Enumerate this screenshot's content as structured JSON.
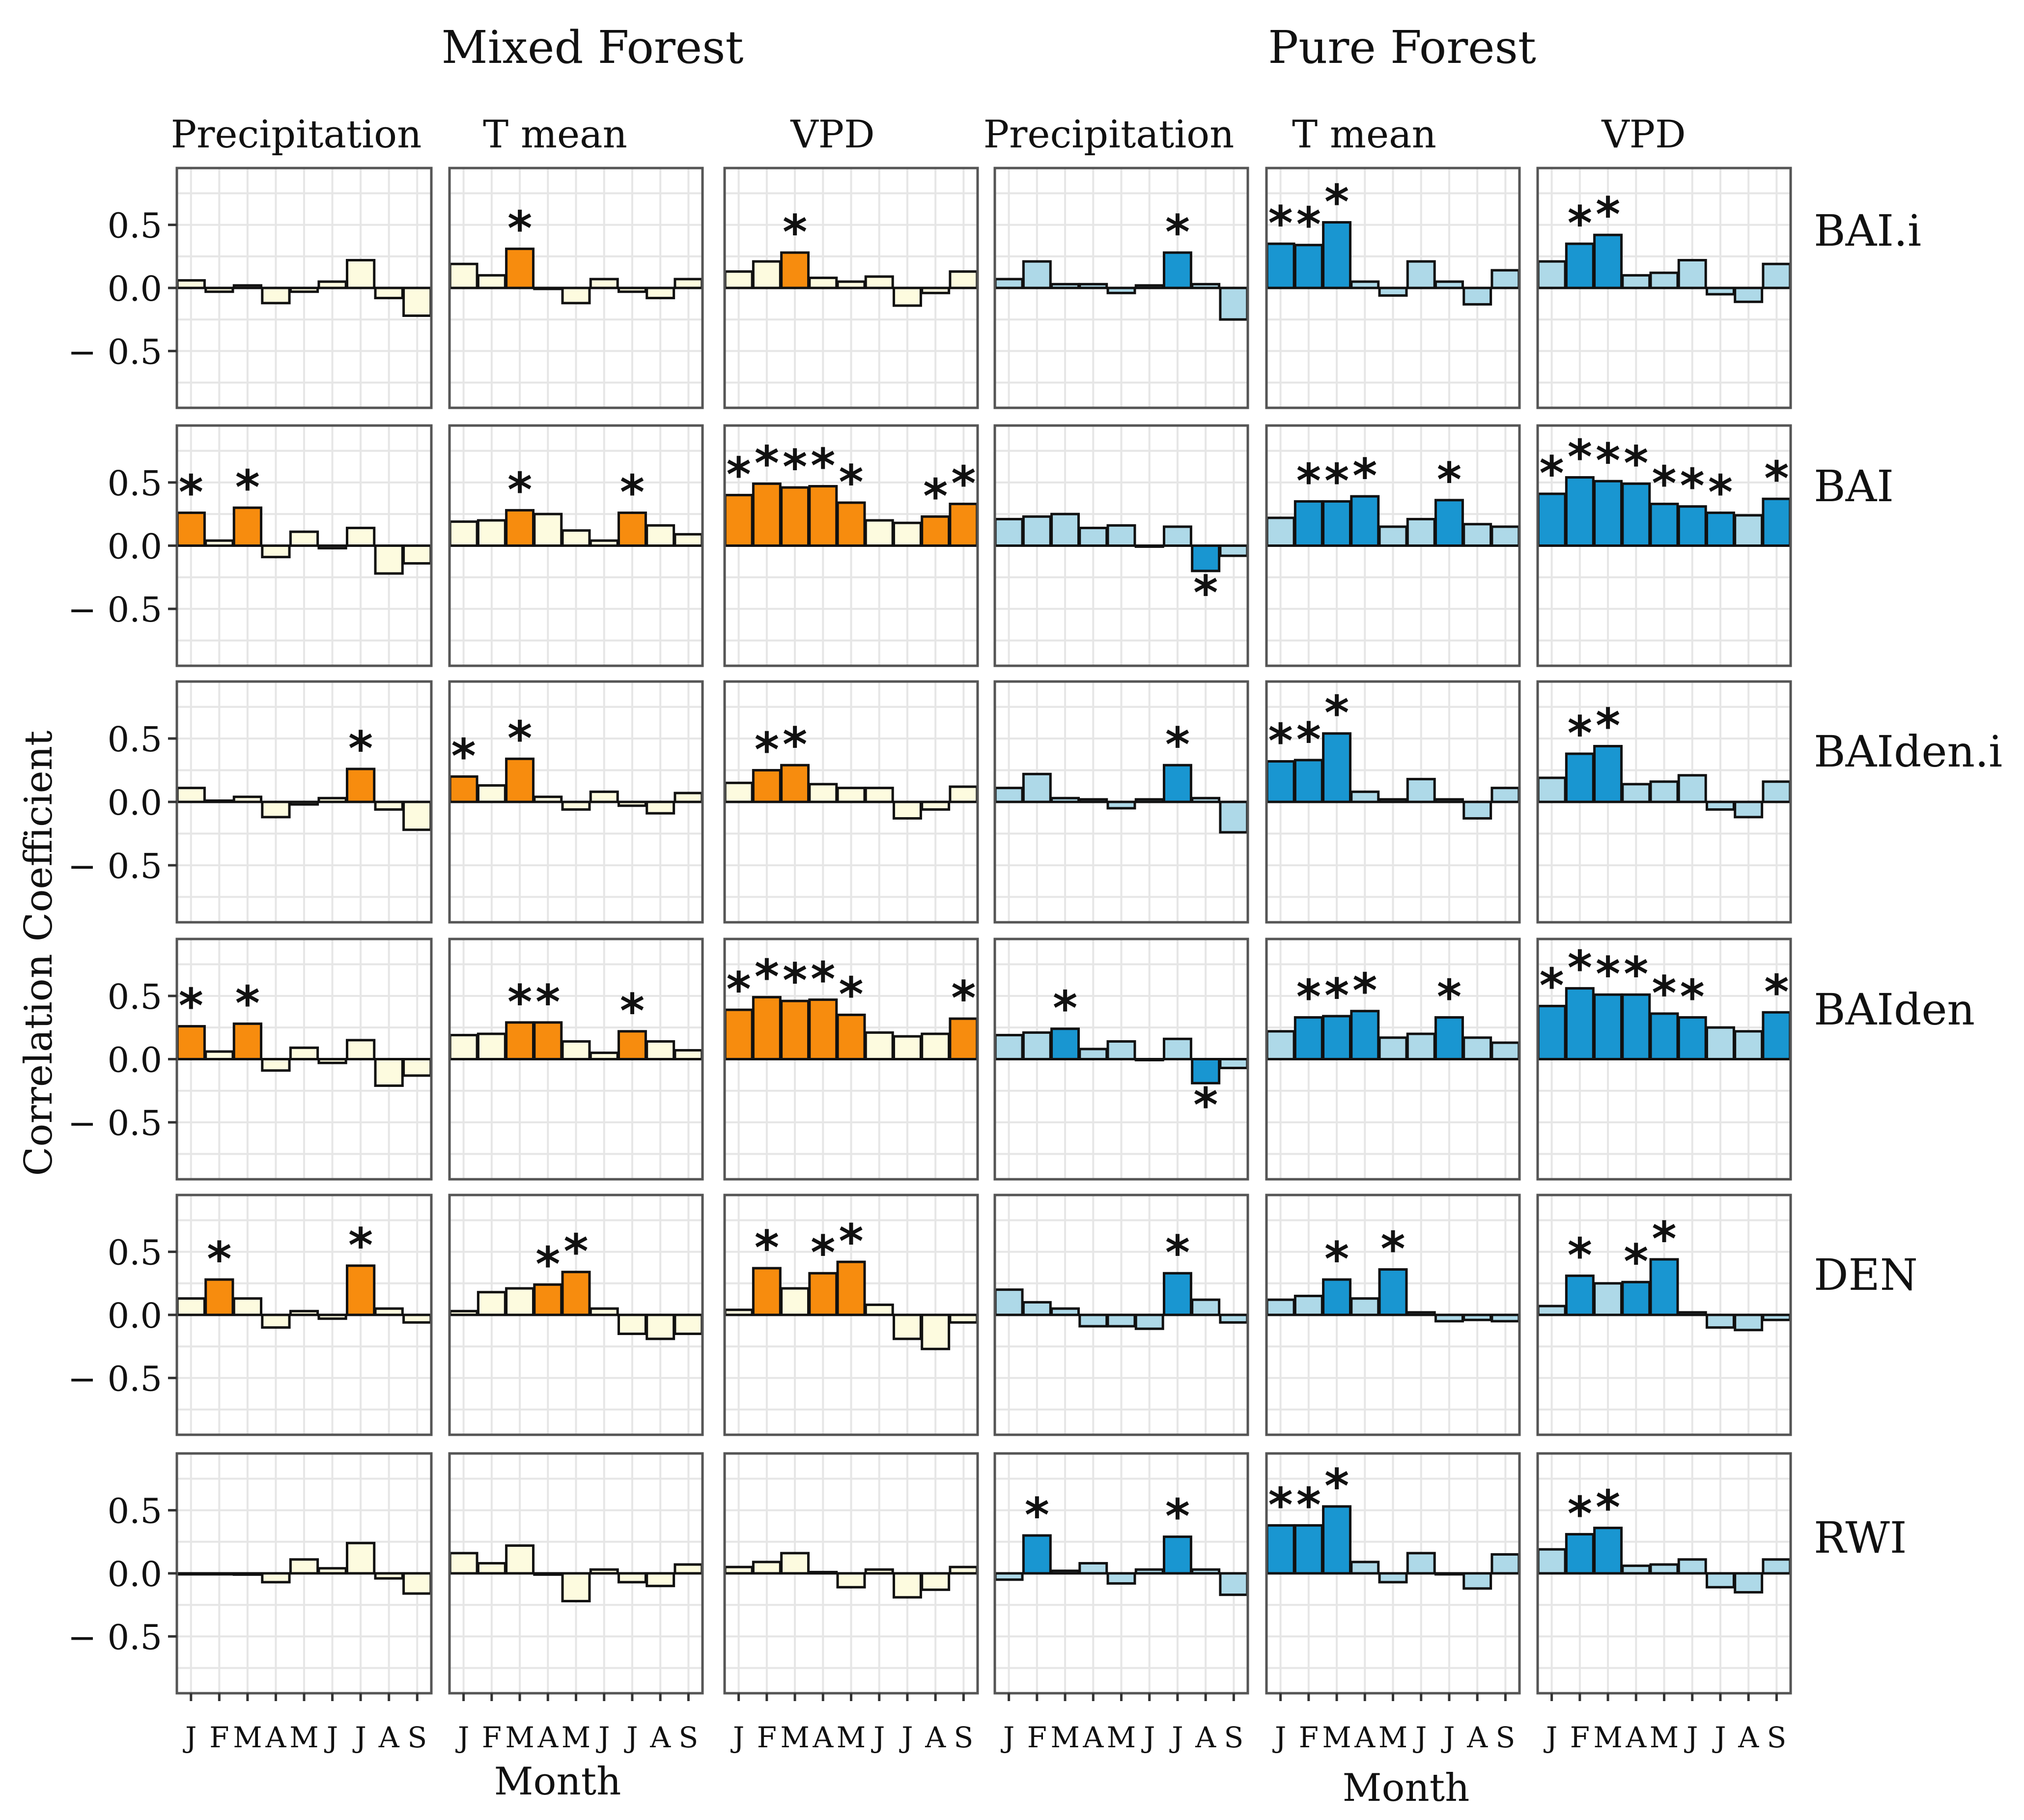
{
  "colors": {
    "mixed_title": "#d27a2c",
    "pure_title": "#1e8fd0",
    "mixed_sig": "#f78c0e",
    "mixed_nonsig": "#fdfbdf",
    "pure_sig": "#1996d1",
    "pure_nonsig": "#aed9e8"
  },
  "chart_data": {
    "type": "bar",
    "title": "",
    "group_titles": [
      "Mixed Forest",
      "Pure Forest"
    ],
    "column_labels": [
      "Precipitation",
      "T mean",
      "VPD",
      "Precipitation",
      "T mean",
      "VPD"
    ],
    "row_labels": [
      "BAI.i",
      "BAI",
      "BAIden.i",
      "BAIden",
      "DEN",
      "RWI"
    ],
    "months": [
      "J",
      "F",
      "M",
      "A",
      "M",
      "J",
      "J",
      "A",
      "S"
    ],
    "xlabel": "Month",
    "ylabel": "Correlation Coefficient",
    "ylim": [
      -0.95,
      0.95
    ],
    "yticks": [
      0.5,
      0.0,
      -0.5
    ],
    "ytick_labels": [
      "0.5",
      "0.0",
      "− 0.5"
    ],
    "significance_marker": "*",
    "panels": [
      [
        {
          "values": [
            0.06,
            -0.03,
            0.02,
            -0.12,
            -0.03,
            0.05,
            0.22,
            -0.08,
            -0.22
          ],
          "sig": [
            0,
            0,
            0,
            0,
            0,
            0,
            0,
            0,
            0
          ]
        },
        {
          "values": [
            0.19,
            0.1,
            0.31,
            0.0,
            -0.12,
            0.07,
            -0.03,
            -0.08,
            0.07
          ],
          "sig": [
            0,
            0,
            1,
            0,
            0,
            0,
            0,
            0,
            0
          ]
        },
        {
          "values": [
            0.13,
            0.21,
            0.28,
            0.08,
            0.05,
            0.09,
            -0.14,
            -0.04,
            0.13
          ],
          "sig": [
            0,
            0,
            1,
            0,
            0,
            0,
            0,
            0,
            0
          ]
        },
        {
          "values": [
            0.07,
            0.21,
            0.03,
            0.03,
            -0.04,
            0.02,
            0.28,
            0.03,
            -0.25
          ],
          "sig": [
            0,
            0,
            0,
            0,
            0,
            0,
            1,
            0,
            0
          ]
        },
        {
          "values": [
            0.35,
            0.34,
            0.52,
            0.05,
            -0.06,
            0.21,
            0.05,
            -0.13,
            0.14
          ],
          "sig": [
            1,
            1,
            1,
            0,
            0,
            0,
            0,
            0,
            0
          ]
        },
        {
          "values": [
            0.21,
            0.35,
            0.42,
            0.1,
            0.12,
            0.22,
            -0.05,
            -0.11,
            0.19
          ],
          "sig": [
            0,
            1,
            1,
            0,
            0,
            0,
            0,
            0,
            0
          ]
        }
      ],
      [
        {
          "values": [
            0.26,
            0.04,
            0.3,
            -0.09,
            0.11,
            -0.02,
            0.14,
            -0.22,
            -0.14
          ],
          "sig": [
            1,
            0,
            1,
            0,
            0,
            0,
            0,
            0,
            0
          ]
        },
        {
          "values": [
            0.19,
            0.2,
            0.28,
            0.25,
            0.12,
            0.04,
            0.26,
            0.16,
            0.09
          ],
          "sig": [
            0,
            0,
            1,
            0,
            0,
            0,
            1,
            0,
            0
          ]
        },
        {
          "values": [
            0.4,
            0.49,
            0.46,
            0.47,
            0.34,
            0.2,
            0.18,
            0.23,
            0.33
          ],
          "sig": [
            1,
            1,
            1,
            1,
            1,
            0,
            0,
            1,
            1
          ]
        },
        {
          "values": [
            0.21,
            0.23,
            0.25,
            0.14,
            0.16,
            0.0,
            0.15,
            -0.2,
            -0.08
          ],
          "sig": [
            0,
            0,
            0,
            0,
            0,
            0,
            0,
            1,
            0
          ]
        },
        {
          "values": [
            0.22,
            0.35,
            0.35,
            0.39,
            0.15,
            0.21,
            0.36,
            0.17,
            0.15
          ],
          "sig": [
            0,
            1,
            1,
            1,
            0,
            0,
            1,
            0,
            0
          ]
        },
        {
          "values": [
            0.41,
            0.54,
            0.51,
            0.49,
            0.33,
            0.31,
            0.26,
            0.24,
            0.37
          ],
          "sig": [
            1,
            1,
            1,
            1,
            1,
            1,
            1,
            0,
            1
          ]
        }
      ],
      [
        {
          "values": [
            0.11,
            0.01,
            0.04,
            -0.12,
            -0.02,
            0.03,
            0.26,
            -0.06,
            -0.22
          ],
          "sig": [
            0,
            0,
            0,
            0,
            0,
            0,
            1,
            0,
            0
          ]
        },
        {
          "values": [
            0.2,
            0.13,
            0.34,
            0.04,
            -0.06,
            0.08,
            -0.03,
            -0.09,
            0.07
          ],
          "sig": [
            1,
            0,
            1,
            0,
            0,
            0,
            0,
            0,
            0
          ]
        },
        {
          "values": [
            0.15,
            0.25,
            0.29,
            0.14,
            0.11,
            0.11,
            -0.13,
            -0.06,
            0.12
          ],
          "sig": [
            0,
            1,
            1,
            0,
            0,
            0,
            0,
            0,
            0
          ]
        },
        {
          "values": [
            0.11,
            0.22,
            0.03,
            0.02,
            -0.05,
            0.02,
            0.29,
            0.03,
            -0.24
          ],
          "sig": [
            0,
            0,
            0,
            0,
            0,
            0,
            1,
            0,
            0
          ]
        },
        {
          "values": [
            0.32,
            0.33,
            0.54,
            0.08,
            0.02,
            0.18,
            0.02,
            -0.13,
            0.11
          ],
          "sig": [
            1,
            1,
            1,
            0,
            0,
            0,
            0,
            0,
            0
          ]
        },
        {
          "values": [
            0.19,
            0.38,
            0.44,
            0.14,
            0.16,
            0.21,
            -0.06,
            -0.12,
            0.16
          ],
          "sig": [
            0,
            1,
            1,
            0,
            0,
            0,
            0,
            0,
            0
          ]
        }
      ],
      [
        {
          "values": [
            0.26,
            0.06,
            0.28,
            -0.09,
            0.09,
            -0.03,
            0.15,
            -0.21,
            -0.13
          ],
          "sig": [
            1,
            0,
            1,
            0,
            0,
            0,
            0,
            0,
            0
          ]
        },
        {
          "values": [
            0.19,
            0.2,
            0.29,
            0.29,
            0.14,
            0.05,
            0.22,
            0.14,
            0.07
          ],
          "sig": [
            0,
            0,
            1,
            1,
            0,
            0,
            1,
            0,
            0
          ]
        },
        {
          "values": [
            0.39,
            0.49,
            0.46,
            0.47,
            0.35,
            0.21,
            0.18,
            0.2,
            0.32
          ],
          "sig": [
            1,
            1,
            1,
            1,
            1,
            0,
            0,
            0,
            1
          ]
        },
        {
          "values": [
            0.19,
            0.21,
            0.24,
            0.08,
            0.14,
            0.0,
            0.16,
            -0.19,
            -0.07
          ],
          "sig": [
            0,
            0,
            1,
            0,
            0,
            0,
            0,
            1,
            0
          ]
        },
        {
          "values": [
            0.22,
            0.33,
            0.34,
            0.38,
            0.17,
            0.2,
            0.33,
            0.17,
            0.13
          ],
          "sig": [
            0,
            1,
            1,
            1,
            0,
            0,
            1,
            0,
            0
          ]
        },
        {
          "values": [
            0.42,
            0.56,
            0.51,
            0.51,
            0.36,
            0.33,
            0.25,
            0.22,
            0.37
          ],
          "sig": [
            1,
            1,
            1,
            1,
            1,
            1,
            0,
            0,
            1
          ]
        }
      ],
      [
        {
          "values": [
            0.13,
            0.28,
            0.13,
            -0.1,
            0.03,
            -0.03,
            0.39,
            0.05,
            -0.06
          ],
          "sig": [
            0,
            1,
            0,
            0,
            0,
            0,
            1,
            0,
            0
          ]
        },
        {
          "values": [
            0.03,
            0.18,
            0.21,
            0.24,
            0.34,
            0.05,
            -0.15,
            -0.19,
            -0.15
          ],
          "sig": [
            0,
            0,
            0,
            1,
            1,
            0,
            0,
            0,
            0
          ]
        },
        {
          "values": [
            0.04,
            0.37,
            0.21,
            0.33,
            0.42,
            0.08,
            -0.19,
            -0.27,
            -0.06
          ],
          "sig": [
            0,
            1,
            0,
            1,
            1,
            0,
            0,
            0,
            0
          ]
        },
        {
          "values": [
            0.2,
            0.1,
            0.05,
            -0.09,
            -0.09,
            -0.11,
            0.33,
            0.12,
            -0.06
          ],
          "sig": [
            0,
            0,
            0,
            0,
            0,
            0,
            1,
            0,
            0
          ]
        },
        {
          "values": [
            0.12,
            0.15,
            0.28,
            0.13,
            0.36,
            0.02,
            -0.05,
            -0.04,
            -0.05
          ],
          "sig": [
            0,
            0,
            1,
            0,
            1,
            0,
            0,
            0,
            0
          ]
        },
        {
          "values": [
            0.07,
            0.31,
            0.25,
            0.26,
            0.44,
            0.02,
            -0.1,
            -0.12,
            -0.04
          ],
          "sig": [
            0,
            1,
            0,
            1,
            1,
            0,
            0,
            0,
            0
          ]
        }
      ],
      [
        {
          "values": [
            0.0,
            0.0,
            -0.01,
            -0.07,
            0.11,
            0.04,
            0.24,
            -0.04,
            -0.16
          ],
          "sig": [
            0,
            0,
            0,
            0,
            0,
            0,
            0,
            0,
            0
          ]
        },
        {
          "values": [
            0.16,
            0.08,
            0.22,
            -0.01,
            -0.22,
            0.03,
            -0.07,
            -0.1,
            0.07
          ],
          "sig": [
            0,
            0,
            0,
            0,
            0,
            0,
            0,
            0,
            0
          ]
        },
        {
          "values": [
            0.05,
            0.09,
            0.16,
            0.01,
            -0.11,
            0.03,
            -0.19,
            -0.13,
            0.05
          ],
          "sig": [
            0,
            0,
            0,
            0,
            0,
            0,
            0,
            0,
            0
          ]
        },
        {
          "values": [
            -0.05,
            0.3,
            0.02,
            0.08,
            -0.08,
            0.03,
            0.29,
            0.03,
            -0.17
          ],
          "sig": [
            0,
            1,
            0,
            0,
            0,
            0,
            1,
            0,
            0
          ]
        },
        {
          "values": [
            0.38,
            0.38,
            0.53,
            0.09,
            -0.07,
            0.16,
            0.0,
            -0.12,
            0.15
          ],
          "sig": [
            1,
            1,
            1,
            0,
            0,
            0,
            0,
            0,
            0
          ]
        },
        {
          "values": [
            0.19,
            0.31,
            0.36,
            0.06,
            0.07,
            0.11,
            -0.11,
            -0.15,
            0.11
          ],
          "sig": [
            0,
            1,
            1,
            0,
            0,
            0,
            0,
            0,
            0
          ]
        }
      ]
    ]
  }
}
